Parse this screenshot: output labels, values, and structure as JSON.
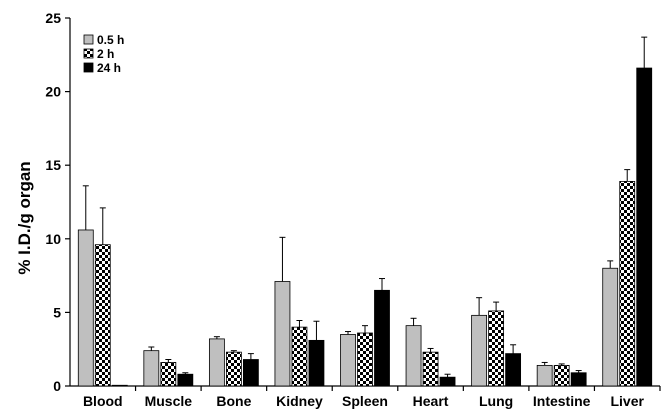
{
  "chart_data": {
    "type": "bar",
    "title": "",
    "xlabel": "",
    "ylabel": "% I.D./g organ",
    "ylim": [
      0,
      25
    ],
    "yticks": [
      0,
      5,
      10,
      15,
      20,
      25
    ],
    "grid": false,
    "legend_position": "top-left",
    "categories": [
      "Blood",
      "Muscle",
      "Bone",
      "Kidney",
      "Spleen",
      "Heart",
      "Lung",
      "Intestine",
      "Liver"
    ],
    "series": [
      {
        "name": "0.5 h",
        "color": "#bfbfbf",
        "pattern": "solid",
        "values": [
          10.6,
          2.4,
          3.2,
          7.1,
          3.5,
          4.1,
          4.8,
          1.4,
          8.0
        ],
        "errors": [
          3.0,
          0.25,
          0.15,
          3.0,
          0.2,
          0.5,
          1.2,
          0.2,
          0.5
        ]
      },
      {
        "name": "2 h",
        "color": "#000000",
        "pattern": "checker",
        "values": [
          9.6,
          1.6,
          2.3,
          4.0,
          3.6,
          2.3,
          5.1,
          1.4,
          13.9
        ],
        "errors": [
          2.5,
          0.2,
          0.1,
          0.45,
          0.5,
          0.25,
          0.6,
          0.1,
          0.8
        ]
      },
      {
        "name": "24 h",
        "color": "#000000",
        "pattern": "solid",
        "values": [
          0.05,
          0.8,
          1.8,
          3.1,
          6.5,
          0.6,
          2.2,
          0.9,
          21.6
        ],
        "errors": [
          0.0,
          0.1,
          0.4,
          1.3,
          0.8,
          0.2,
          0.6,
          0.15,
          2.1
        ]
      }
    ]
  }
}
